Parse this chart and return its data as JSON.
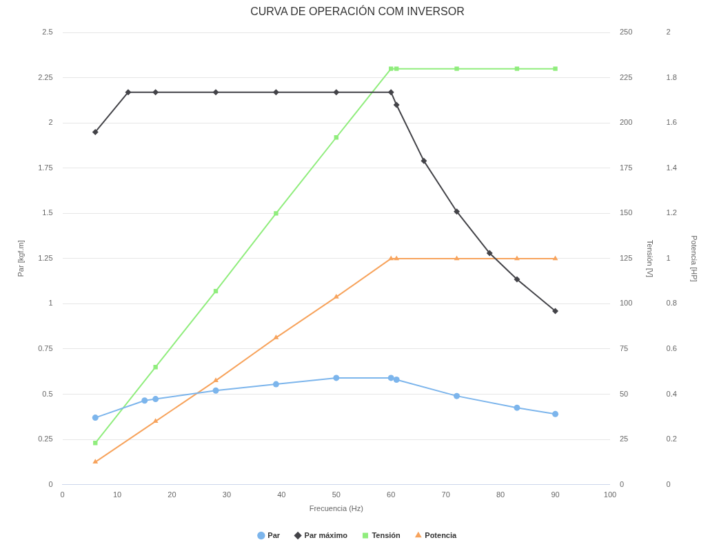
{
  "chart_data": {
    "type": "line",
    "title": "CURVA DE OPERACIÓN COM INVERSOR",
    "xlabel": "Frecuencia (Hz)",
    "ylabel": "Par [kgf.m]",
    "y2label": "Tensión [V]",
    "y3label": "Potencia [HP]",
    "xlim": [
      0,
      100
    ],
    "xticks": [
      0,
      10,
      20,
      30,
      40,
      50,
      60,
      70,
      80,
      90,
      100
    ],
    "ylim": [
      0,
      2.5
    ],
    "yticks": [
      0,
      0.25,
      0.5,
      0.75,
      1,
      1.25,
      1.5,
      1.75,
      2,
      2.25,
      2.5
    ],
    "y2lim": [
      0,
      250
    ],
    "y2ticks": [
      0,
      25,
      50,
      75,
      100,
      125,
      150,
      175,
      200,
      225,
      250
    ],
    "y3lim": [
      0,
      2
    ],
    "y3ticks": [
      0,
      0.2,
      0.4,
      0.6,
      0.8,
      1,
      1.2,
      1.4,
      1.6,
      1.8,
      2
    ],
    "grid": "y",
    "legend": "bottom",
    "line_style": "solid",
    "series": [
      {
        "name": "Par",
        "color": "#7cb5ec",
        "marker": "circle",
        "x": [
          6,
          15,
          17,
          28,
          39,
          50,
          60,
          61,
          72,
          83,
          90
        ],
        "values": [
          0.37,
          0.465,
          0.473,
          0.52,
          0.555,
          0.59,
          0.59,
          0.58,
          0.49,
          0.425,
          0.39
        ]
      },
      {
        "name": "Par máximo",
        "color": "#434348",
        "marker": "diamond",
        "x": [
          6,
          12,
          17,
          28,
          39,
          50,
          60,
          61,
          66,
          72,
          78,
          83,
          90
        ],
        "values": [
          1.95,
          2.17,
          2.17,
          2.17,
          2.17,
          2.17,
          2.17,
          2.1,
          1.79,
          1.51,
          1.28,
          1.135,
          0.96
        ]
      },
      {
        "name": "Tensión",
        "color": "#90ed7d",
        "marker": "square",
        "axis": "y2",
        "x": [
          6,
          17,
          28,
          39,
          50,
          60,
          61,
          72,
          83,
          90
        ],
        "values": [
          23,
          65,
          107,
          150,
          192,
          230,
          230,
          230,
          230,
          230
        ]
      },
      {
        "name": "Potencia",
        "color": "#f7a35c",
        "marker": "triangle",
        "axis": "y3",
        "x": [
          6,
          17,
          28,
          39,
          50,
          60,
          61,
          72,
          83,
          90
        ],
        "values": [
          0.1,
          0.28,
          0.46,
          0.65,
          0.83,
          1,
          1,
          1,
          1,
          1
        ]
      }
    ]
  }
}
